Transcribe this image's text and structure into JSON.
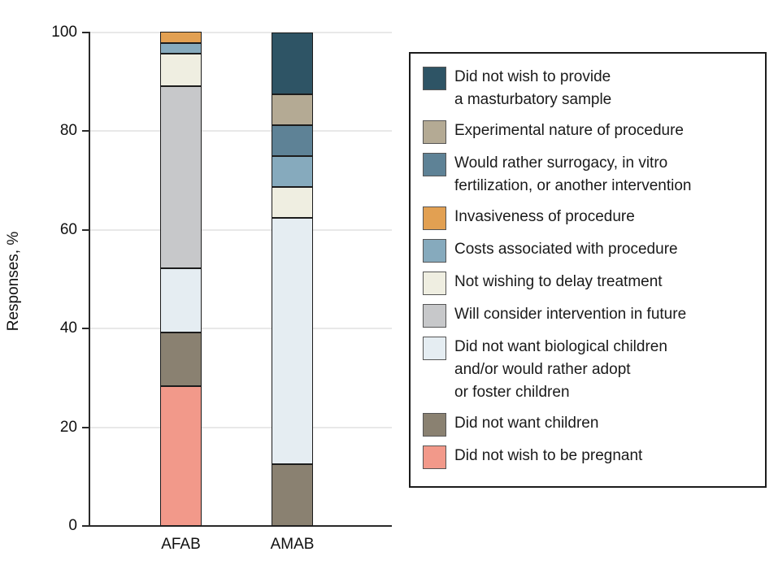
{
  "chart_data": {
    "type": "bar",
    "stacked": true,
    "title": "",
    "xlabel": "",
    "ylabel": "Responses, %",
    "ylim": [
      0,
      100
    ],
    "yticks": [
      0,
      20,
      40,
      60,
      80,
      100
    ],
    "grid": true,
    "legend_position": "right",
    "categories": [
      "AFAB",
      "AMAB"
    ],
    "series": [
      {
        "name": "Did not wish to provide a masturbatory sample",
        "label_lines": [
          "Did not wish to provide",
          "a masturbatory sample"
        ],
        "color": "#2e5465",
        "values": [
          0,
          12.5
        ]
      },
      {
        "name": "Experimental nature of procedure",
        "label_lines": [
          "Experimental nature of procedure"
        ],
        "color": "#b4aa94",
        "values": [
          0,
          6.25
        ]
      },
      {
        "name": "Would rather surrogacy, in vitro fertilization, or another intervention",
        "label_lines": [
          "Would rather surrogacy, in vitro",
          "fertilization, or another intervention"
        ],
        "color": "#5e8296",
        "values": [
          0,
          6.25
        ]
      },
      {
        "name": "Invasiveness of procedure",
        "label_lines": [
          "Invasiveness of procedure"
        ],
        "color": "#e2a052",
        "values": [
          2.2,
          0
        ]
      },
      {
        "name": "Costs associated with procedure",
        "label_lines": [
          "Costs associated with procedure"
        ],
        "color": "#86aabd",
        "values": [
          2.2,
          6.25
        ]
      },
      {
        "name": "Not wishing to delay treatment",
        "label_lines": [
          "Not wishing to delay treatment"
        ],
        "color": "#efeee1",
        "values": [
          6.5,
          6.25
        ]
      },
      {
        "name": "Will consider intervention in future",
        "label_lines": [
          "Will consider intervention in future"
        ],
        "color": "#c7c8ca",
        "values": [
          37.0,
          0
        ]
      },
      {
        "name": "Did not want biological children and/or would rather adopt or foster children",
        "label_lines": [
          "Did not want biological children",
          "and/or would rather adopt",
          "or foster children"
        ],
        "color": "#e5edf2",
        "values": [
          13.0,
          50.0
        ]
      },
      {
        "name": "Did not want children",
        "label_lines": [
          "Did not want children"
        ],
        "color": "#8a8171",
        "values": [
          10.9,
          12.5
        ]
      },
      {
        "name": "Did not wish to be pregnant",
        "label_lines": [
          "Did not wish to be pregnant"
        ],
        "color": "#f2998a",
        "values": [
          28.3,
          0
        ]
      }
    ]
  }
}
